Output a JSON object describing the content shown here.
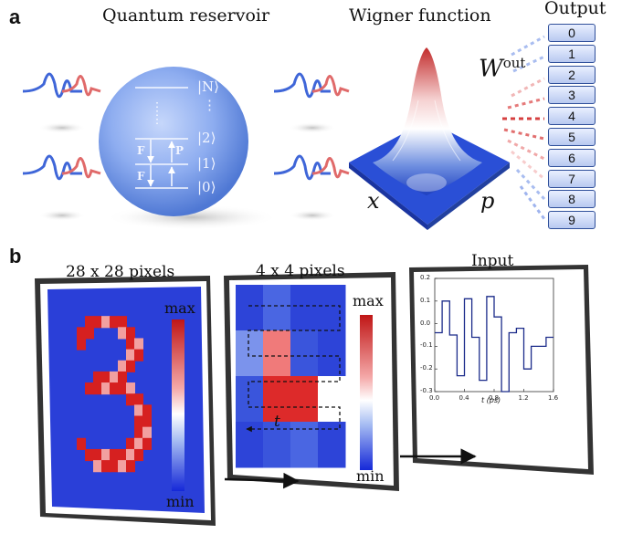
{
  "panel_a": {
    "letter": "a",
    "titles": {
      "reservoir": "Quantum reservoir",
      "wigner": "Wigner function",
      "output": "Output"
    },
    "kets": [
      "|N⟩",
      "|2⟩",
      "|1⟩",
      "|0⟩"
    ],
    "ket_dots": "⋮",
    "operators": {
      "f_top": "F",
      "p": "P",
      "f_bottom": "F"
    },
    "wigner_axes": {
      "x": "x",
      "p": "p"
    },
    "wout_base": "W",
    "wout_sup": "out",
    "output_digits": [
      "0",
      "1",
      "2",
      "3",
      "4",
      "5",
      "6",
      "7",
      "8",
      "9"
    ]
  },
  "panel_b": {
    "letter": "b",
    "frame1_title": "28 x 28 pixels",
    "frame2_title": "4 x 4 pixels",
    "frame3_title": "Input",
    "colorbar": {
      "max": "max",
      "min": "min"
    },
    "time_label": "t",
    "input_chart": {
      "xlabel": "t (ps)",
      "xticks": [
        "0.0",
        "0.4",
        "0.8",
        "1.2",
        "1.6"
      ],
      "yticks": [
        "0.2",
        "0.1",
        "0.0",
        "-0.1",
        "-0.2",
        "-0.3"
      ]
    }
  },
  "chart_data": {
    "type": "line",
    "xlabel": "t (ps)",
    "ylabel": "",
    "xlim": [
      0.0,
      1.6
    ],
    "ylim": [
      -0.3,
      0.2
    ],
    "x": [
      0.0,
      0.1,
      0.1,
      0.2,
      0.2,
      0.3,
      0.3,
      0.4,
      0.4,
      0.5,
      0.5,
      0.6,
      0.6,
      0.7,
      0.7,
      0.8,
      0.8,
      0.9,
      0.9,
      1.0,
      1.0,
      1.1,
      1.1,
      1.2,
      1.2,
      1.3,
      1.3,
      1.4,
      1.4,
      1.5,
      1.5,
      1.6
    ],
    "y": [
      -0.04,
      -0.04,
      0.1,
      0.1,
      -0.05,
      -0.05,
      -0.23,
      -0.23,
      0.11,
      0.11,
      -0.06,
      -0.06,
      -0.25,
      -0.25,
      0.12,
      0.12,
      0.03,
      0.03,
      -0.3,
      -0.3,
      -0.04,
      -0.04,
      -0.02,
      -0.02,
      -0.2,
      -0.2,
      -0.1,
      -0.1,
      -0.1,
      -0.1,
      -0.06,
      -0.06
    ]
  }
}
